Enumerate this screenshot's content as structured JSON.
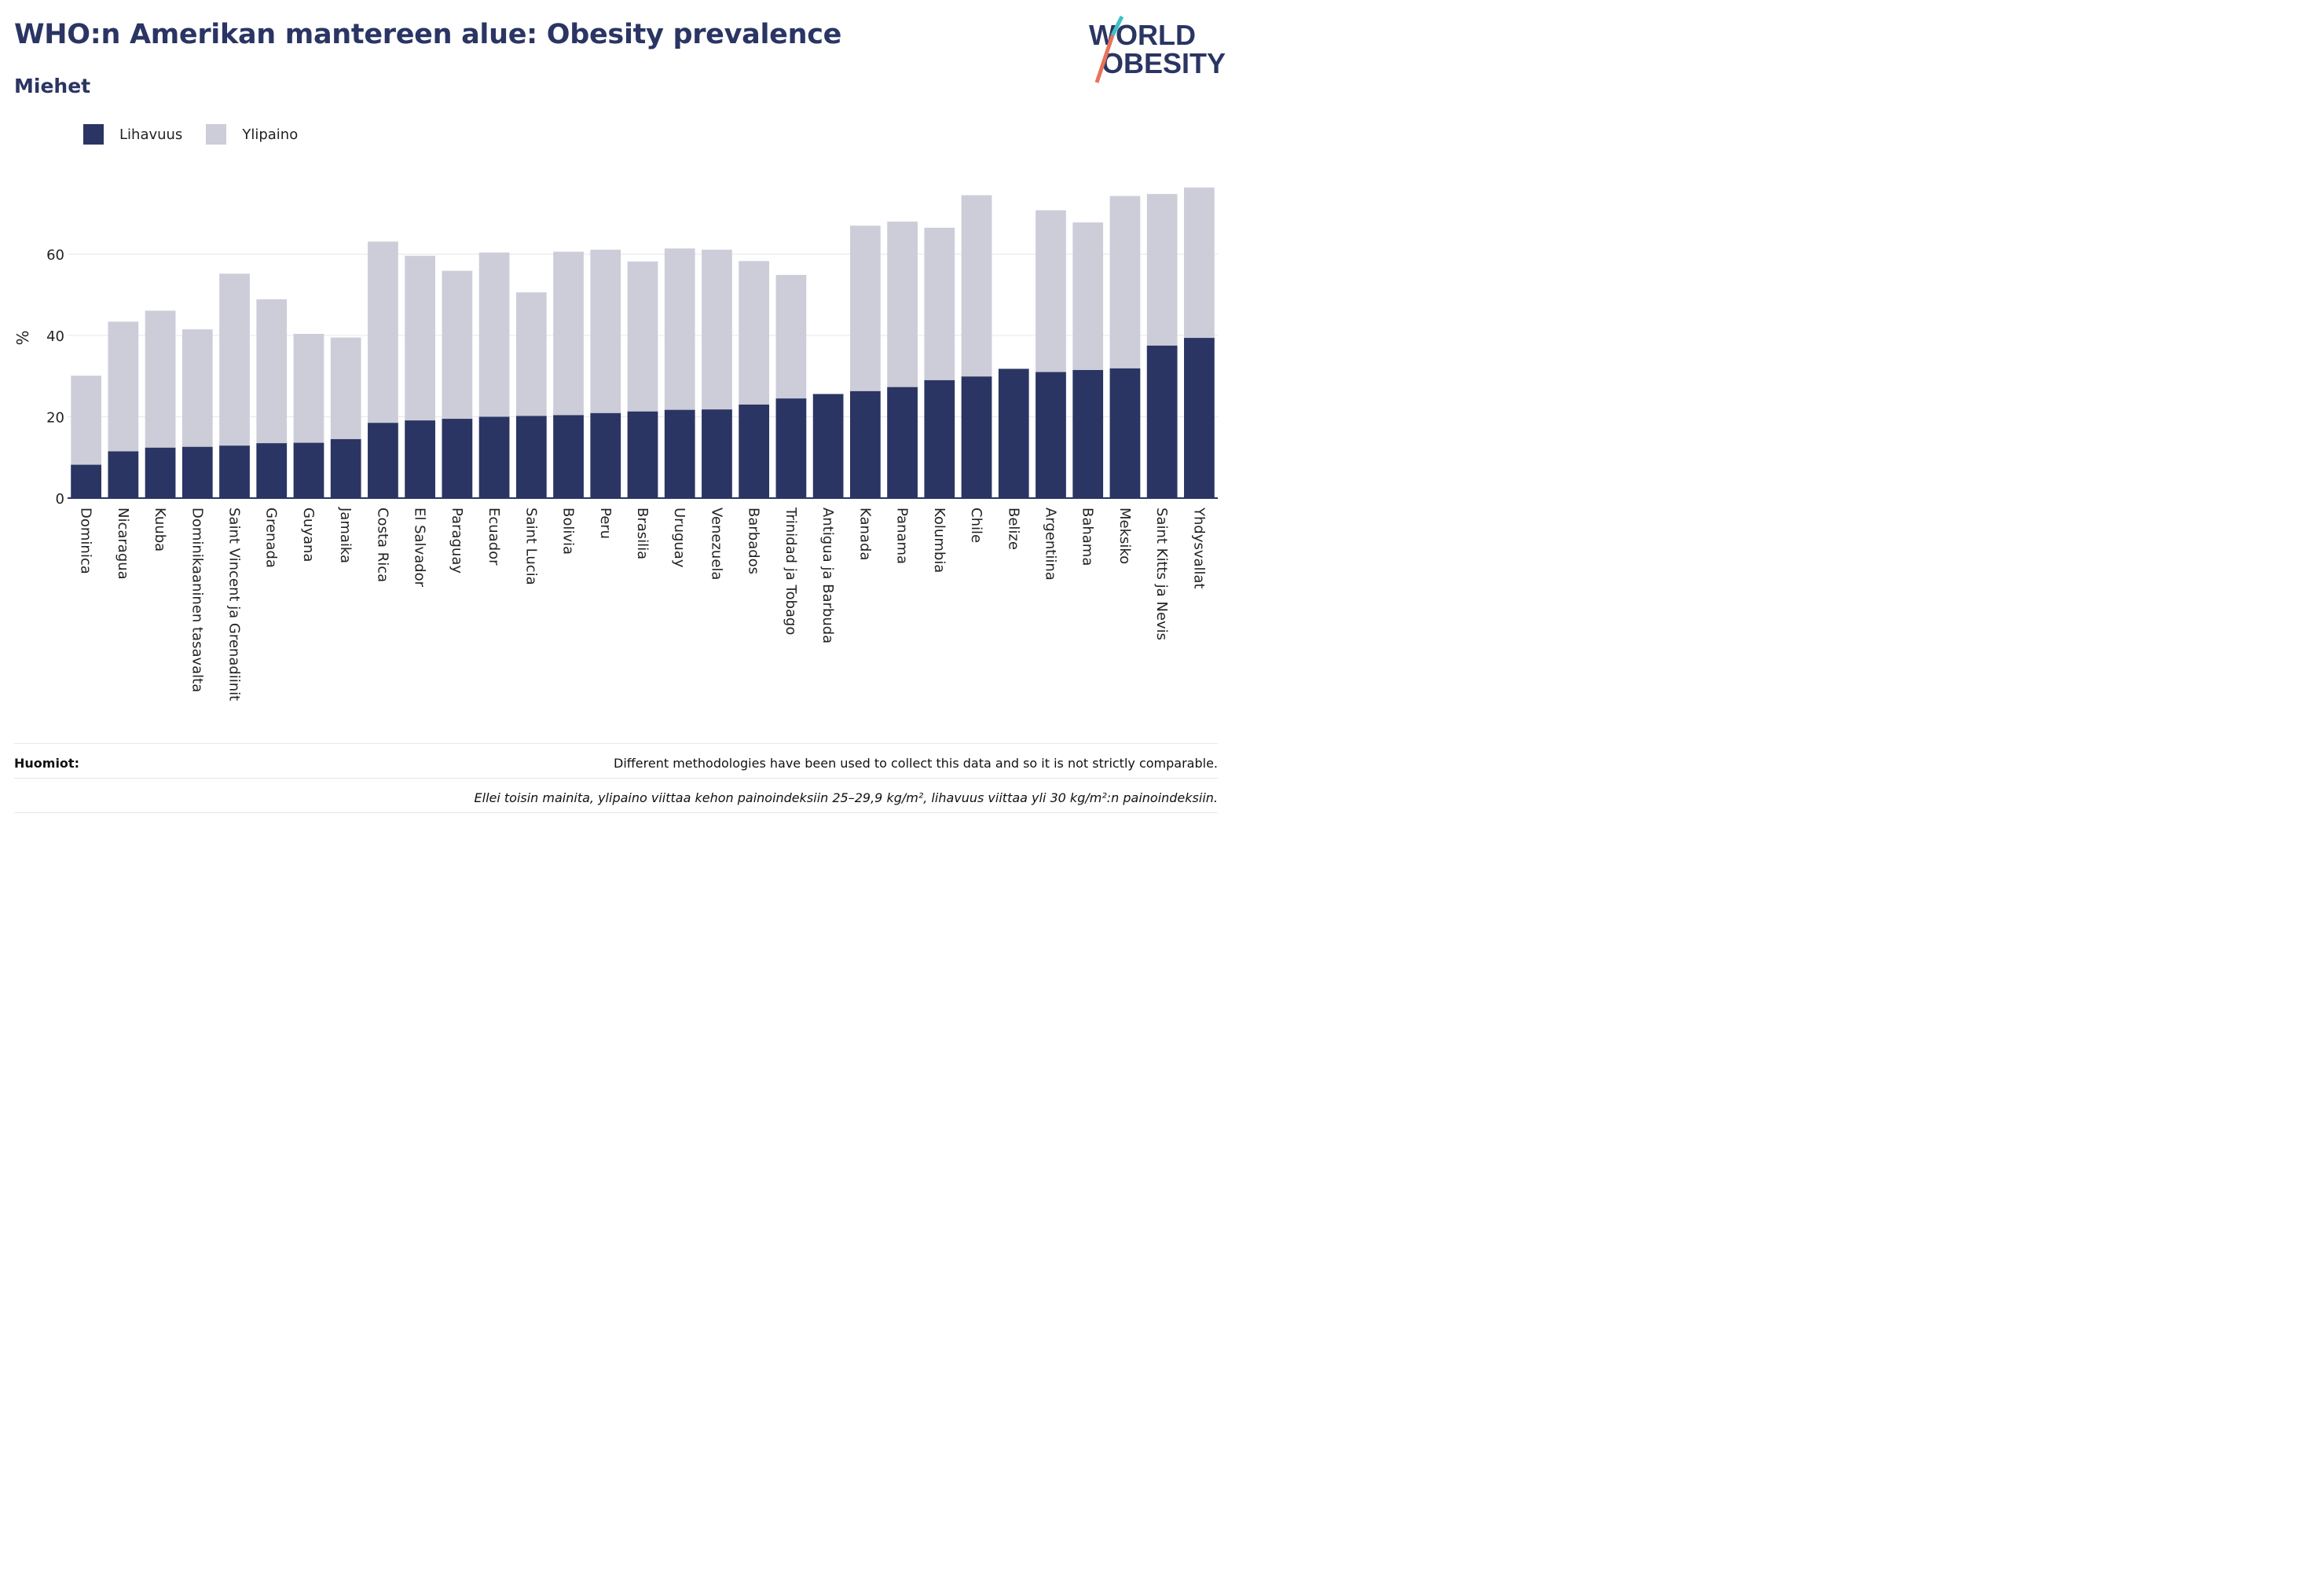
{
  "header": {
    "title": "WHO:n Amerikan mantereen alue: Obesity prevalence",
    "subtitle": "Miehet"
  },
  "logo": {
    "line1": "WORLD",
    "line2": "OBESITY",
    "accent_colors": [
      "#3fc1c9",
      "#e8735a"
    ]
  },
  "legend": {
    "items": [
      {
        "label": "Lihavuus",
        "color": "#2a3563"
      },
      {
        "label": "Ylipaino",
        "color": "#cccdd8"
      }
    ]
  },
  "notes": {
    "label": "Huomiot:",
    "text": "Different methodologies have been used to collect this data and so it is not strictly comparable.",
    "footnote": "Ellei toisin mainita, ylipaino viittaa kehon painoindeksiin 25–29,9 kg/m², lihavuus viittaa yli 30 kg/m²:n painoindeksiin."
  },
  "chart_data": {
    "type": "bar",
    "stacked": "overlay",
    "ylabel": "%",
    "ylim": [
      0,
      80
    ],
    "yticks": [
      0,
      20,
      40,
      60
    ],
    "grid": true,
    "legend_position": "top-left",
    "categories": [
      "Dominica",
      "Nicaragua",
      "Kuuba",
      "Dominikaaninen tasavalta",
      "Saint Vincent ja Grenadiinit",
      "Grenada",
      "Guyana",
      "Jamaika",
      "Costa Rica",
      "El Salvador",
      "Paraguay",
      "Ecuador",
      "Saint Lucia",
      "Bolivia",
      "Peru",
      "Brasilia",
      "Uruguay",
      "Venezuela",
      "Barbados",
      "Trinidad ja Tobago",
      "Antigua ja Barbuda",
      "Kanada",
      "Panama",
      "Kolumbia",
      "Chile",
      "Belize",
      "Argentiina",
      "Bahama",
      "Meksiko",
      "Saint Kitts ja Nevis",
      "Yhdysvallat"
    ],
    "series": [
      {
        "name": "Lihavuus",
        "color": "#2a3563",
        "values": [
          8.2,
          11.5,
          12.4,
          12.6,
          12.9,
          13.5,
          13.6,
          14.5,
          18.5,
          19.1,
          19.5,
          20.0,
          20.2,
          20.4,
          20.9,
          21.3,
          21.7,
          21.8,
          23.0,
          24.5,
          25.6,
          26.3,
          27.3,
          29.0,
          29.9,
          31.8,
          31.0,
          31.5,
          31.9,
          37.5,
          39.4
        ]
      },
      {
        "name": "Ylipaino",
        "color": "#cccdd8",
        "values": [
          30.1,
          43.4,
          46.1,
          41.5,
          55.2,
          48.9,
          40.4,
          39.5,
          63.1,
          59.6,
          55.9,
          60.4,
          50.6,
          60.6,
          61.1,
          58.2,
          61.4,
          61.1,
          58.3,
          54.9,
          null,
          67.0,
          68.0,
          66.5,
          74.5,
          null,
          70.8,
          67.8,
          74.3,
          74.8,
          76.4
        ]
      }
    ]
  }
}
